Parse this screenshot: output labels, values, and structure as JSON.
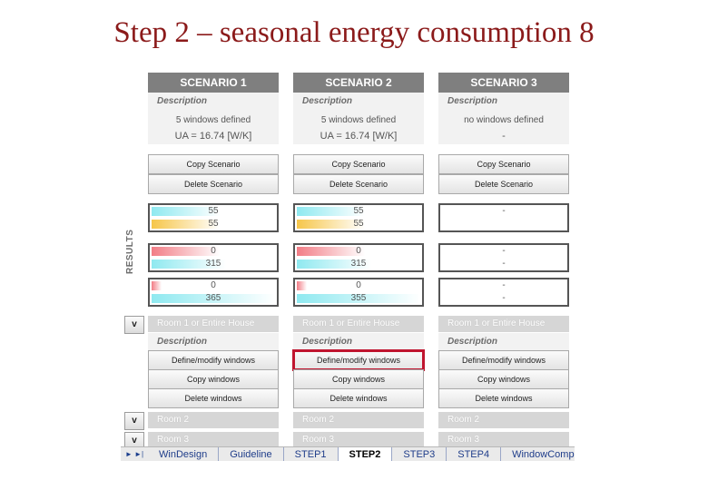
{
  "slide": {
    "title": "Step 2 – seasonal energy consumption 8"
  },
  "results_label": "RESULTS",
  "description_label": "Description",
  "scenarios": [
    {
      "header": "SCENARIO 1",
      "desc_line1": "5 windows defined",
      "desc_line2": "UA = 16.74 [W/K]",
      "copy_label": "Copy Scenario",
      "delete_label": "Delete Scenario",
      "results": [
        {
          "value": "55",
          "bar": "cyan",
          "fill": 0.55
        },
        {
          "value": "55",
          "bar": "yellow",
          "fill": 0.55
        },
        {
          "value": "0",
          "bar": "red",
          "fill": 0.55
        },
        {
          "value": "315",
          "bar": "cyan",
          "fill": 0.6
        },
        {
          "value": "0",
          "bar": "red",
          "fill": 0.08
        },
        {
          "value": "365",
          "bar": "cyan",
          "fill": 1.0
        }
      ],
      "room1": "Room 1 or Entire House",
      "define_label": "Define/modify windows",
      "copy_windows_label": "Copy windows",
      "delete_windows_label": "Delete windows",
      "room2": "Room 2",
      "room3": "Room 3"
    },
    {
      "header": "SCENARIO 2",
      "desc_line1": "5 windows defined",
      "desc_line2": "UA = 16.74 [W/K]",
      "copy_label": "Copy Scenario",
      "delete_label": "Delete Scenario",
      "results": [
        {
          "value": "55",
          "bar": "cyan",
          "fill": 0.55
        },
        {
          "value": "55",
          "bar": "yellow",
          "fill": 0.55
        },
        {
          "value": "0",
          "bar": "red",
          "fill": 0.55
        },
        {
          "value": "315",
          "bar": "cyan",
          "fill": 0.6
        },
        {
          "value": "0",
          "bar": "red",
          "fill": 0.08
        },
        {
          "value": "355",
          "bar": "cyan",
          "fill": 1.0
        }
      ],
      "room1": "Room 1 or Entire House",
      "define_label": "Define/modify windows",
      "copy_windows_label": "Copy windows",
      "delete_windows_label": "Delete windows",
      "room2": "Room 2",
      "room3": "Room 3"
    },
    {
      "header": "SCENARIO 3",
      "desc_line1": "no windows defined",
      "desc_line2": "-",
      "copy_label": "Copy Scenario",
      "delete_label": "Delete Scenario",
      "results": [
        {
          "value": "-",
          "bar": "none",
          "fill": 0
        },
        {
          "value": "",
          "bar": "none",
          "fill": 0
        },
        {
          "value": "-",
          "bar": "none",
          "fill": 0
        },
        {
          "value": "-",
          "bar": "none",
          "fill": 0
        },
        {
          "value": "-",
          "bar": "none",
          "fill": 0
        },
        {
          "value": "-",
          "bar": "none",
          "fill": 0
        }
      ],
      "room1": "Room 1 or Entire House",
      "define_label": "Define/modify windows",
      "copy_windows_label": "Copy windows",
      "delete_windows_label": "Delete windows",
      "room2": "Room 2",
      "room3": "Room 3"
    }
  ],
  "collapse_button_label": "v",
  "sheet_tabs": {
    "nav": "► ►|",
    "tabs": [
      "WinDesign",
      "Guideline",
      "STEP1",
      "STEP2",
      "STEP3",
      "STEP4",
      "WindowComponents"
    ],
    "active": "STEP2"
  }
}
